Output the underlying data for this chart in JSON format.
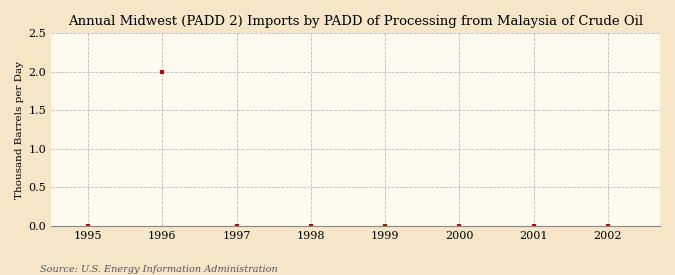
{
  "title": "Annual Midwest (PADD 2) Imports by PADD of Processing from Malaysia of Crude Oil",
  "ylabel": "Thousand Barrels per Day",
  "source": "Source: U.S. Energy Information Administration",
  "xlim": [
    1994.5,
    2002.7
  ],
  "ylim": [
    0.0,
    2.5
  ],
  "yticks": [
    0.0,
    0.5,
    1.0,
    1.5,
    2.0,
    2.5
  ],
  "xticks": [
    1995,
    1996,
    1997,
    1998,
    1999,
    2000,
    2001,
    2002
  ],
  "data_x": [
    1995,
    1996,
    1997,
    1998,
    1999,
    2000,
    2001,
    2002
  ],
  "data_y": [
    0.0,
    2.0,
    0.0,
    0.0,
    0.0,
    0.0,
    0.0,
    0.0
  ],
  "marker_color": "#cc0000",
  "marker_style": "s",
  "marker_size": 3.5,
  "bg_color": "#f5e6c8",
  "plot_bg_color": "#fdfaf0",
  "grid_color": "#bbbbbb",
  "title_fontsize": 9.5,
  "label_fontsize": 7.5,
  "tick_fontsize": 8,
  "source_fontsize": 7
}
